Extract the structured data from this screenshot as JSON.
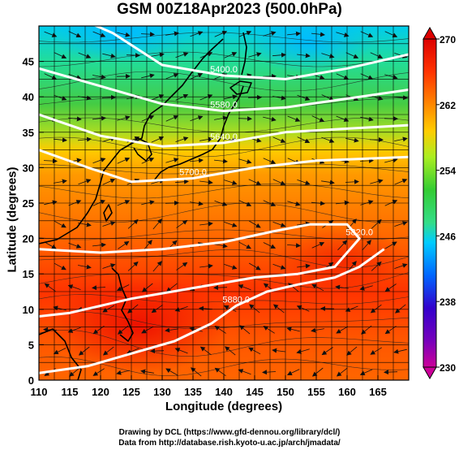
{
  "title": "GSM 00Z18Apr2023 (500.0hPa)",
  "xlabel": "Longitude (degrees)",
  "ylabel": "Latitude  (degrees)",
  "credits": [
    "Drawing by DCL (https://www.gfd-dennou.org/library/dcl/)",
    "Data from http://database.rish.kyoto-u.ac.jp/arch/jmadata/"
  ],
  "chart_data": {
    "type": "heatmap",
    "title": "GSM 00Z18Apr2023 (500.0hPa)",
    "xlabel": "Longitude (degrees)",
    "ylabel": "Latitude  (degrees)",
    "xlim": [
      110,
      170
    ],
    "ylim": [
      0,
      50
    ],
    "x_ticks": [
      110,
      115,
      120,
      125,
      130,
      135,
      140,
      145,
      150,
      155,
      160,
      165
    ],
    "y_ticks": [
      0,
      5,
      10,
      15,
      20,
      25,
      30,
      35,
      40,
      45
    ],
    "grid": true,
    "colorbar": {
      "min": 230,
      "max": 270,
      "labels": [
        270,
        262,
        254,
        246,
        238,
        230
      ],
      "colors": [
        "#cc0099",
        "#3300cc",
        "#0066ff",
        "#00ccff",
        "#33dd88",
        "#33cc33",
        "#aaee22",
        "#ffcc00",
        "#ff8800",
        "#ff3300",
        "#dd0000"
      ],
      "placement": "right"
    },
    "contours": [
      {
        "label": "5400.0",
        "points": [
          [
            114,
            52
          ],
          [
            122,
            49
          ],
          [
            130,
            44.5
          ],
          [
            140,
            43
          ],
          [
            150,
            42.5
          ],
          [
            160,
            44
          ],
          [
            170,
            46
          ]
        ]
      },
      {
        "label": "5580.0",
        "points": [
          [
            110,
            44
          ],
          [
            120,
            41.5
          ],
          [
            130,
            39
          ],
          [
            140,
            38
          ],
          [
            150,
            38.5
          ],
          [
            158,
            39.5
          ],
          [
            170,
            41
          ]
        ]
      },
      {
        "label": "5640.0",
        "points": [
          [
            110,
            37.5
          ],
          [
            120,
            34.5
          ],
          [
            130,
            33
          ],
          [
            140,
            33.5
          ],
          [
            150,
            35
          ],
          [
            160,
            35.5
          ],
          [
            170,
            36
          ]
        ]
      },
      {
        "label": "5700.0",
        "points": [
          [
            110,
            32.5
          ],
          [
            118,
            30
          ],
          [
            125,
            28
          ],
          [
            135,
            28.5
          ],
          [
            145,
            30
          ],
          [
            155,
            31
          ],
          [
            170,
            31.5
          ]
        ]
      },
      {
        "label": "5820.0",
        "points": [
          [
            110,
            18.5
          ],
          [
            120,
            18
          ],
          [
            130,
            18.5
          ],
          [
            140,
            19.5
          ],
          [
            148,
            21
          ],
          [
            154,
            22
          ],
          [
            160,
            22
          ],
          [
            162,
            20
          ],
          [
            158,
            16
          ],
          [
            152,
            15
          ],
          [
            145,
            14.5
          ],
          [
            135,
            13
          ],
          [
            125,
            11.5
          ],
          [
            115,
            9.5
          ],
          [
            110,
            9
          ]
        ]
      },
      {
        "label": "5880.0",
        "points": [
          [
            110,
            1
          ],
          [
            118,
            2
          ],
          [
            126,
            4
          ],
          [
            132,
            5.5
          ],
          [
            138,
            8
          ],
          [
            142,
            10.5
          ],
          [
            147,
            12.5
          ],
          [
            152,
            13.5
          ],
          [
            158,
            14.5
          ],
          [
            162,
            16
          ],
          [
            166,
            18.5
          ]
        ]
      }
    ]
  }
}
